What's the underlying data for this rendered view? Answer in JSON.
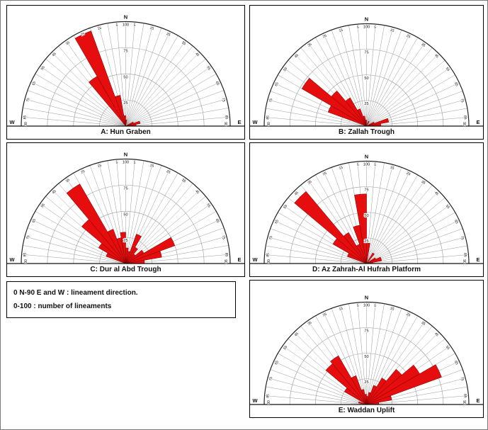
{
  "legend": {
    "lines": [
      "0 N-90 E and W : lineament direction.",
      "0-100 : number of lineaments"
    ]
  },
  "rose_axes": {
    "compass": {
      "north": "N",
      "west": "W",
      "east": "E"
    },
    "rmax": 100,
    "radial_ticks": [
      25,
      50,
      75,
      100
    ],
    "azimuth_tick_step_deg": 5,
    "azimuth_labels": [
      5,
      15,
      25,
      35,
      45,
      55,
      65,
      75,
      85
    ],
    "baseline_azimuth_label": "90",
    "petal_color": "#e60d0e",
    "petal_stroke": "#7a0000",
    "grid_color": "#9a9a9a",
    "outer_ring_color": "#222222",
    "baseline_color": "#111111"
  },
  "chart_data": [
    {
      "id": "A",
      "type": "rose",
      "title": "A: Hun Graben",
      "units": "number of lineaments",
      "azimuth_convention": "degrees from N; negative = W side, positive = E side; half circle 90W-0-90E",
      "rlim": [
        0,
        100
      ],
      "bins": [
        {
          "from": -40,
          "to": -30,
          "value": 55
        },
        {
          "from": -30,
          "to": -20,
          "value": 97
        },
        {
          "from": -20,
          "to": -10,
          "value": 30
        },
        {
          "from": -10,
          "to": 0,
          "value": 10
        },
        {
          "from": 0,
          "to": 10,
          "value": 6
        },
        {
          "from": 60,
          "to": 70,
          "value": 8
        },
        {
          "from": 70,
          "to": 80,
          "value": 14
        },
        {
          "from": 80,
          "to": 90,
          "value": 10
        }
      ]
    },
    {
      "id": "B",
      "type": "rose",
      "title": "B: Zallah Trough",
      "units": "number of lineaments",
      "azimuth_convention": "degrees from N; negative = W side, positive = E side; half circle 90W-0-90E",
      "rlim": [
        0,
        100
      ],
      "bins": [
        {
          "from": -70,
          "to": -60,
          "value": 40
        },
        {
          "from": -60,
          "to": -50,
          "value": 73
        },
        {
          "from": -50,
          "to": -40,
          "value": 45
        },
        {
          "from": -40,
          "to": -30,
          "value": 32
        },
        {
          "from": -30,
          "to": -20,
          "value": 18
        },
        {
          "from": -20,
          "to": -10,
          "value": 10
        },
        {
          "from": -10,
          "to": 0,
          "value": 6
        },
        {
          "from": 20,
          "to": 30,
          "value": 5
        },
        {
          "from": 60,
          "to": 70,
          "value": 8
        },
        {
          "from": 70,
          "to": 80,
          "value": 22
        },
        {
          "from": 80,
          "to": 90,
          "value": 14
        }
      ]
    },
    {
      "id": "C",
      "type": "rose",
      "title": "C: Dur al Abd Trough",
      "units": "number of lineaments",
      "azimuth_convention": "degrees from N; negative = W side, positive = E side; half circle 90W-0-90E",
      "rlim": [
        0,
        100
      ],
      "bins": [
        {
          "from": -70,
          "to": -60,
          "value": 20
        },
        {
          "from": -60,
          "to": -50,
          "value": 30
        },
        {
          "from": -50,
          "to": -40,
          "value": 55
        },
        {
          "from": -40,
          "to": -30,
          "value": 88
        },
        {
          "from": -30,
          "to": -20,
          "value": 35
        },
        {
          "from": -20,
          "to": -10,
          "value": 25
        },
        {
          "from": -10,
          "to": 0,
          "value": 30
        },
        {
          "from": 0,
          "to": 10,
          "value": 15
        },
        {
          "from": 10,
          "to": 20,
          "value": 12
        },
        {
          "from": 20,
          "to": 30,
          "value": 30
        },
        {
          "from": 30,
          "to": 40,
          "value": 18
        },
        {
          "from": 40,
          "to": 50,
          "value": 12
        },
        {
          "from": 50,
          "to": 60,
          "value": 20
        },
        {
          "from": 60,
          "to": 70,
          "value": 50
        },
        {
          "from": 70,
          "to": 80,
          "value": 35
        },
        {
          "from": 80,
          "to": 90,
          "value": 18
        }
      ]
    },
    {
      "id": "D",
      "type": "rose",
      "title": "D: Az Zahrah-Al Hufrah Platform",
      "units": "number of lineaments",
      "azimuth_convention": "degrees from N; negative = W side, positive = E side; half circle 90W-0-90E",
      "rlim": [
        0,
        100
      ],
      "bins": [
        {
          "from": -70,
          "to": -60,
          "value": 20
        },
        {
          "from": -60,
          "to": -50,
          "value": 38
        },
        {
          "from": -50,
          "to": -40,
          "value": 92
        },
        {
          "from": -40,
          "to": -30,
          "value": 35
        },
        {
          "from": -30,
          "to": -20,
          "value": 20
        },
        {
          "from": -20,
          "to": -10,
          "value": 38
        },
        {
          "from": -10,
          "to": 0,
          "value": 68
        },
        {
          "from": 0,
          "to": 10,
          "value": 20
        },
        {
          "from": 30,
          "to": 40,
          "value": 12
        },
        {
          "from": 55,
          "to": 65,
          "value": 10
        },
        {
          "from": 65,
          "to": 80,
          "value": 15
        },
        {
          "from": 80,
          "to": 90,
          "value": 6
        }
      ]
    },
    {
      "id": "E",
      "type": "rose",
      "title": "E: Waddan Uplift",
      "units": "number of lineaments",
      "azimuth_convention": "degrees from N; negative = W side, positive = E side; half circle 90W-0-90E",
      "rlim": [
        0,
        100
      ],
      "bins": [
        {
          "from": -80,
          "to": -70,
          "value": 8
        },
        {
          "from": -60,
          "to": -50,
          "value": 25
        },
        {
          "from": -50,
          "to": -40,
          "value": 52
        },
        {
          "from": -40,
          "to": -30,
          "value": 55
        },
        {
          "from": -30,
          "to": -20,
          "value": 30
        },
        {
          "from": -20,
          "to": -10,
          "value": 15
        },
        {
          "from": -10,
          "to": 0,
          "value": 10
        },
        {
          "from": 0,
          "to": 10,
          "value": 8
        },
        {
          "from": 10,
          "to": 20,
          "value": 12
        },
        {
          "from": 20,
          "to": 30,
          "value": 20
        },
        {
          "from": 30,
          "to": 40,
          "value": 30
        },
        {
          "from": 40,
          "to": 50,
          "value": 45
        },
        {
          "from": 50,
          "to": 60,
          "value": 60
        },
        {
          "from": 60,
          "to": 70,
          "value": 78
        },
        {
          "from": 70,
          "to": 80,
          "value": 25
        },
        {
          "from": 80,
          "to": 90,
          "value": 12
        }
      ]
    }
  ]
}
